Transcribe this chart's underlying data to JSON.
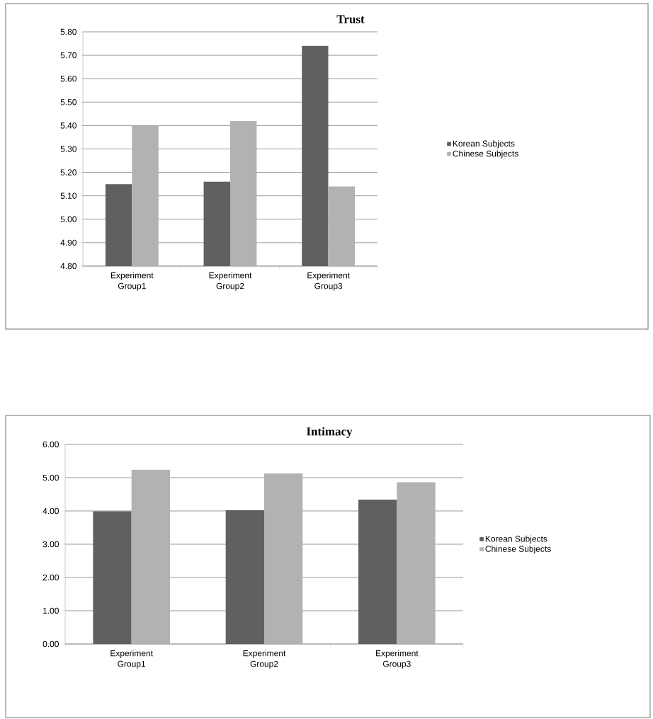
{
  "chart_data": [
    {
      "type": "bar",
      "title": "Trust",
      "categories": [
        "Experiment Group1",
        "Experiment Group2",
        "Experiment Group3"
      ],
      "series": [
        {
          "name": "Korean Subjects",
          "color": "#606060",
          "values": [
            5.15,
            5.16,
            5.74
          ]
        },
        {
          "name": "Chinese Subjects",
          "color": "#b2b2b2",
          "values": [
            5.4,
            5.42,
            5.14
          ]
        }
      ],
      "ylim": [
        4.8,
        5.8
      ],
      "yticks": [
        {
          "value": 4.8,
          "label": "4.80"
        },
        {
          "value": 4.9,
          "label": "4.90"
        },
        {
          "value": 5.0,
          "label": "5.00"
        },
        {
          "value": 5.1,
          "label": "5.10"
        },
        {
          "value": 5.2,
          "label": "5.20"
        },
        {
          "value": 5.3,
          "label": "5.30"
        },
        {
          "value": 5.4,
          "label": "5.40"
        },
        {
          "value": 5.5,
          "label": "5.50"
        },
        {
          "value": 5.6,
          "label": "5.60"
        },
        {
          "value": 5.7,
          "label": "5.70"
        },
        {
          "value": 5.8,
          "label": "5.80"
        }
      ],
      "grid": "y",
      "legend": "right"
    },
    {
      "type": "bar",
      "title": "Intimacy",
      "categories": [
        "Experiment Group1",
        "Experiment Group2",
        "Experiment Group3"
      ],
      "series": [
        {
          "name": "Korean Subjects",
          "color": "#606060",
          "values": [
            3.99,
            4.02,
            4.34
          ]
        },
        {
          "name": "Chinese Subjects",
          "color": "#b2b2b2",
          "values": [
            5.24,
            5.13,
            4.86
          ]
        }
      ],
      "ylim": [
        0,
        6
      ],
      "yticks": [
        {
          "value": 0,
          "label": "0.00"
        },
        {
          "value": 1,
          "label": "1.00"
        },
        {
          "value": 2,
          "label": "2.00"
        },
        {
          "value": 3,
          "label": "3.00"
        },
        {
          "value": 4,
          "label": "4.00"
        },
        {
          "value": 5,
          "label": "5.00"
        },
        {
          "value": 6,
          "label": "6.00"
        }
      ],
      "grid": "y",
      "legend": "right"
    }
  ]
}
